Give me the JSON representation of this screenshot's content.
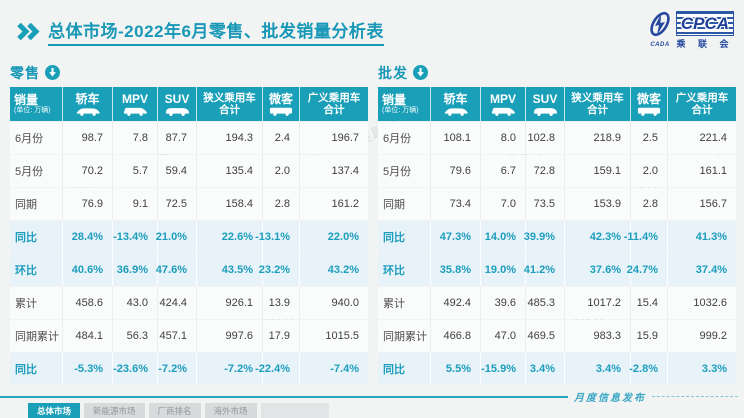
{
  "title": "总体市场-2022年6月零售、批发销量分析表",
  "logo": {
    "acronym": "CPCA",
    "name": "乘 联 会",
    "sub": "CADA"
  },
  "watermark": "CPCA 乘联会",
  "columns": [
    {
      "key": "metric",
      "label": "销量",
      "sub": "(单位: 万辆)"
    },
    {
      "key": "sedan",
      "label": "轿车",
      "icon": "sedan-car-icon"
    },
    {
      "key": "mpv",
      "label": "MPV",
      "icon": "mpv-car-icon"
    },
    {
      "key": "suv",
      "label": "SUV",
      "icon": "suv-car-icon"
    },
    {
      "key": "narrow-total",
      "label": "狭义乘用车",
      "label2": "合计"
    },
    {
      "key": "microvan",
      "label": "微客",
      "icon": "microvan-car-icon"
    },
    {
      "key": "broad-total",
      "label": "广义乘用车",
      "label2": "合计"
    }
  ],
  "tables": [
    {
      "key": "retail",
      "label": "零售",
      "rows": [
        {
          "label": "6月份",
          "highlight": false,
          "values": [
            "98.7",
            "7.8",
            "87.7",
            "194.3",
            "2.4",
            "196.7"
          ]
        },
        {
          "label": "5月份",
          "highlight": false,
          "values": [
            "70.2",
            "5.7",
            "59.4",
            "135.4",
            "2.0",
            "137.4"
          ]
        },
        {
          "label": "同期",
          "highlight": false,
          "values": [
            "76.9",
            "9.1",
            "72.5",
            "158.4",
            "2.8",
            "161.2"
          ]
        },
        {
          "label": "同比",
          "highlight": true,
          "values": [
            "28.4%",
            "-13.4%",
            "21.0%",
            "22.6%",
            "-13.1%",
            "22.0%"
          ]
        },
        {
          "label": "环比",
          "highlight": true,
          "values": [
            "40.6%",
            "36.9%",
            "47.6%",
            "43.5%",
            "23.2%",
            "43.2%"
          ]
        },
        {
          "label": "累计",
          "highlight": false,
          "values": [
            "458.6",
            "43.0",
            "424.4",
            "926.1",
            "13.9",
            "940.0"
          ]
        },
        {
          "label": "同期累计",
          "highlight": false,
          "values": [
            "484.1",
            "56.3",
            "457.1",
            "997.6",
            "17.9",
            "1015.5"
          ]
        },
        {
          "label": "同比",
          "highlight": true,
          "values": [
            "-5.3%",
            "-23.6%",
            "-7.2%",
            "-7.2%",
            "-22.4%",
            "-7.4%"
          ]
        }
      ]
    },
    {
      "key": "wholesale",
      "label": "批发",
      "rows": [
        {
          "label": "6月份",
          "highlight": false,
          "values": [
            "108.1",
            "8.0",
            "102.8",
            "218.9",
            "2.5",
            "221.4"
          ]
        },
        {
          "label": "5月份",
          "highlight": false,
          "values": [
            "79.6",
            "6.7",
            "72.8",
            "159.1",
            "2.0",
            "161.1"
          ]
        },
        {
          "label": "同期",
          "highlight": false,
          "values": [
            "73.4",
            "7.0",
            "73.5",
            "153.9",
            "2.8",
            "156.7"
          ]
        },
        {
          "label": "同比",
          "highlight": true,
          "values": [
            "47.3%",
            "14.0%",
            "39.9%",
            "42.3%",
            "-11.4%",
            "41.3%"
          ]
        },
        {
          "label": "环比",
          "highlight": true,
          "values": [
            "35.8%",
            "19.0%",
            "41.2%",
            "37.6%",
            "24.7%",
            "37.4%"
          ]
        },
        {
          "label": "累计",
          "highlight": false,
          "values": [
            "492.4",
            "39.6",
            "485.3",
            "1017.2",
            "15.4",
            "1032.6"
          ]
        },
        {
          "label": "同期累计",
          "highlight": false,
          "values": [
            "466.8",
            "47.0",
            "469.5",
            "983.3",
            "15.9",
            "999.2"
          ]
        },
        {
          "label": "同比",
          "highlight": true,
          "values": [
            "5.5%",
            "-15.9%",
            "3.4%",
            "3.4%",
            "-2.8%",
            "3.3%"
          ]
        }
      ]
    }
  ],
  "footer": {
    "script_text": "月度信息发布",
    "tabs": [
      {
        "label": "总体市场",
        "active": true
      },
      {
        "label": "新能源市场",
        "active": false
      },
      {
        "label": "厂商排名",
        "active": false
      },
      {
        "label": "海外市场",
        "active": false
      }
    ]
  },
  "colors": {
    "teal": "#1A9FB8",
    "highlight_bg": "#E7F3F8",
    "teal_text": "#1D9DBD",
    "navy": "#24489E"
  }
}
